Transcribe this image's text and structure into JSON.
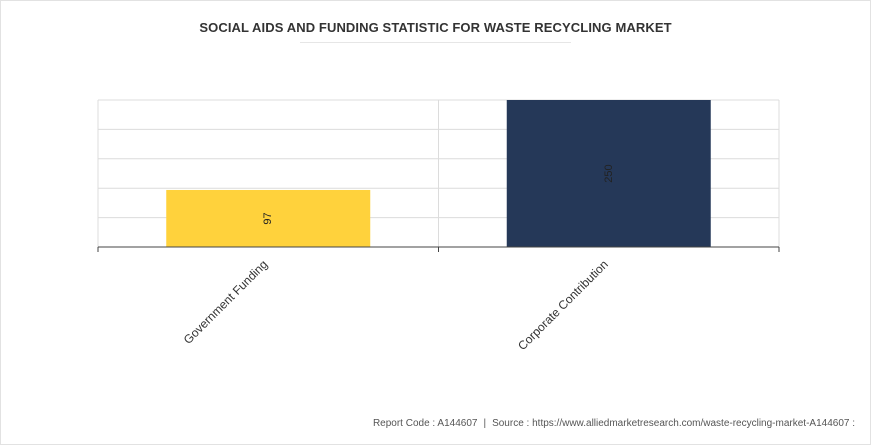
{
  "chart_data": {
    "type": "bar",
    "title": "SOCIAL AIDS AND FUNDING STATISTIC FOR WASTE RECYCLING MARKET",
    "categories": [
      "Government Funding",
      "Corporate Contribution"
    ],
    "values": [
      97,
      250
    ],
    "data_labels": [
      "97",
      "250"
    ],
    "xlabel": "",
    "ylabel": "",
    "ylim": [
      0,
      250
    ],
    "grid": true,
    "legend": "none",
    "colors": [
      "#ffd23c",
      "#253858"
    ]
  },
  "footer": {
    "report_code": "Report Code : A144607",
    "separator": "|",
    "source": "Source : https://www.alliedmarketresearch.com/waste-recycling-market-A144607 :"
  }
}
